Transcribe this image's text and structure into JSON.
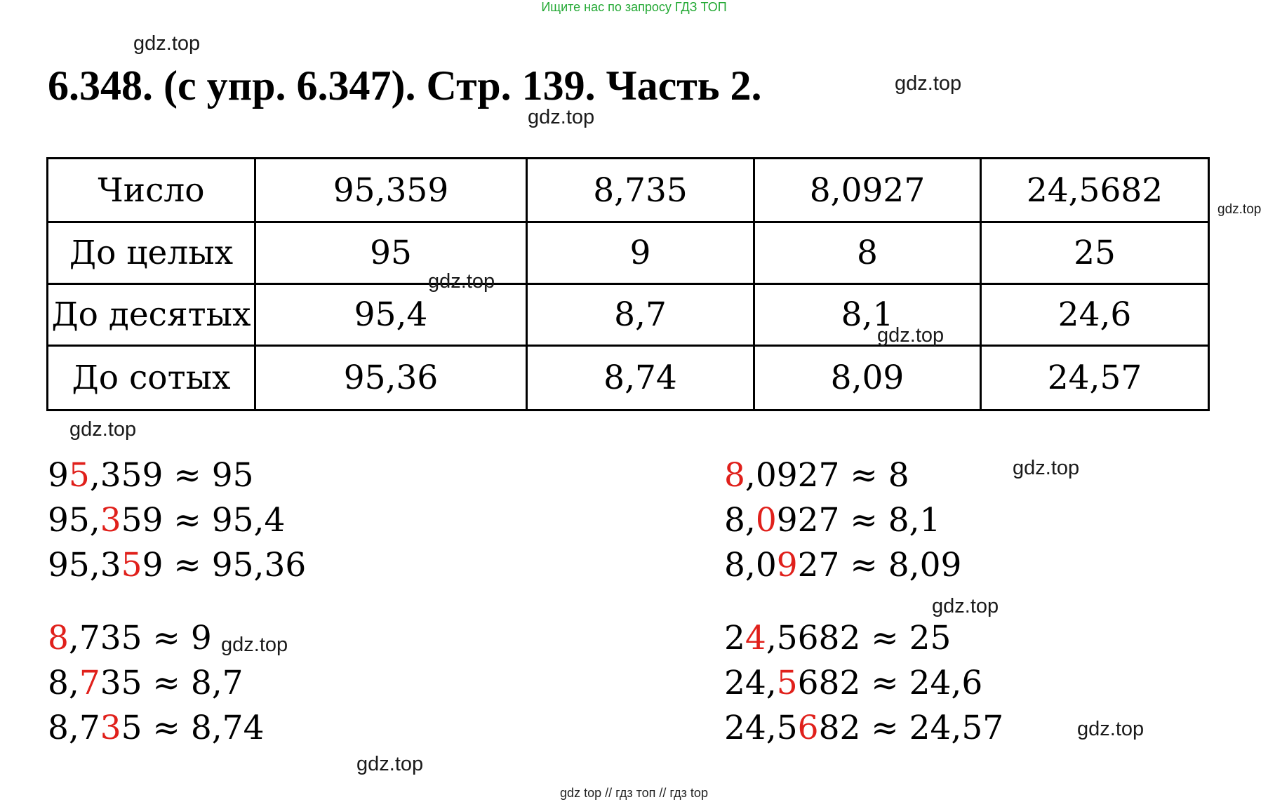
{
  "banner": "Ищите нас по запросу ГДЗ ТОП",
  "title": "6.348.  (с упр. 6.347). Стр. 139. Часть 2.",
  "watermark": "gdz.top",
  "table": {
    "headers": [
      "Число",
      "95,359",
      "8,735",
      "8,0927",
      "24,5682"
    ],
    "rows": [
      {
        "label": "До целых",
        "values": [
          "95",
          "9",
          "8",
          "25"
        ]
      },
      {
        "label": "До десятых",
        "values": [
          "95,4",
          "8,7",
          "8,1",
          "24,6"
        ]
      },
      {
        "label": "До сотых",
        "values": [
          "95,36",
          "8,74",
          "8,09",
          "24,57"
        ]
      }
    ]
  },
  "calculations": [
    {
      "pre": "9",
      "digit": "5",
      "post": ",359 ≈ 95"
    },
    {
      "pre": "95,",
      "digit": "3",
      "post": "59 ≈ 95,4"
    },
    {
      "pre": "95,3",
      "digit": "5",
      "post": "9 ≈ 95,36"
    },
    {
      "pre": "",
      "digit": "8",
      "post": ",735 ≈ 9"
    },
    {
      "pre": "8,",
      "digit": "7",
      "post": "35 ≈ 8,7"
    },
    {
      "pre": "8,7",
      "digit": "3",
      "post": "5 ≈ 8,74"
    },
    {
      "pre": "",
      "digit": "8",
      "post": ",0927 ≈ 8"
    },
    {
      "pre": "8,",
      "digit": "0",
      "post": "927 ≈ 8,1"
    },
    {
      "pre": "8,0",
      "digit": "9",
      "post": "27 ≈ 8,09"
    },
    {
      "pre": "2",
      "digit": "4",
      "post": ",5682 ≈ 25"
    },
    {
      "pre": "24,",
      "digit": "5",
      "post": "682 ≈ 24,6"
    },
    {
      "pre": "24,5",
      "digit": "6",
      "post": "82 ≈ 24,57"
    }
  ],
  "footer": "gdz top  //  гдз топ  //  гдз top",
  "colors": {
    "highlight": "#e0201b",
    "banner": "#22a833"
  }
}
